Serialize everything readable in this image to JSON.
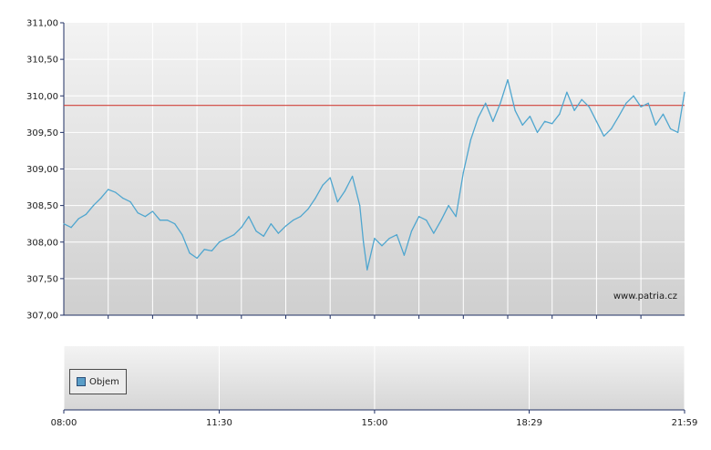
{
  "chart_data": {
    "type": "line",
    "watermark": "www.patria.cz",
    "reference_line": 309.87,
    "colors": {
      "line": "#4fa6cf",
      "reference": "#d0423a"
    },
    "y_ticks": [
      "311,00",
      "310,50",
      "310,00",
      "309,50",
      "309,00",
      "308,50",
      "308,00",
      "307,50",
      "307,00"
    ],
    "ylim": [
      307.0,
      311.0
    ],
    "x_ticks": [
      "08:00",
      "11:30",
      "15:00",
      "18:29",
      "21:59"
    ],
    "legend": {
      "label": "Objem"
    },
    "series": [
      {
        "values": [
          [
            "08:00",
            308.25
          ],
          [
            "08:10",
            308.2
          ],
          [
            "08:20",
            308.32
          ],
          [
            "08:30",
            308.38
          ],
          [
            "08:40",
            308.5
          ],
          [
            "08:50",
            308.6
          ],
          [
            "09:00",
            308.72
          ],
          [
            "09:10",
            308.68
          ],
          [
            "09:20",
            308.6
          ],
          [
            "09:30",
            308.55
          ],
          [
            "09:40",
            308.4
          ],
          [
            "09:50",
            308.35
          ],
          [
            "10:00",
            308.42
          ],
          [
            "10:10",
            308.3
          ],
          [
            "10:20",
            308.3
          ],
          [
            "10:30",
            308.25
          ],
          [
            "10:40",
            308.1
          ],
          [
            "10:50",
            307.85
          ],
          [
            "11:00",
            307.78
          ],
          [
            "11:10",
            307.9
          ],
          [
            "11:20",
            307.88
          ],
          [
            "11:30",
            308.0
          ],
          [
            "11:40",
            308.05
          ],
          [
            "11:50",
            308.1
          ],
          [
            "12:00",
            308.2
          ],
          [
            "12:10",
            308.35
          ],
          [
            "12:20",
            308.15
          ],
          [
            "12:30",
            308.08
          ],
          [
            "12:40",
            308.25
          ],
          [
            "12:50",
            308.12
          ],
          [
            "13:00",
            308.22
          ],
          [
            "13:10",
            308.3
          ],
          [
            "13:20",
            308.35
          ],
          [
            "13:30",
            308.45
          ],
          [
            "13:40",
            308.6
          ],
          [
            "13:50",
            308.78
          ],
          [
            "14:00",
            308.88
          ],
          [
            "14:10",
            308.55
          ],
          [
            "14:20",
            308.7
          ],
          [
            "14:30",
            308.9
          ],
          [
            "14:40",
            308.5
          ],
          [
            "14:45",
            308.0
          ],
          [
            "14:50",
            307.62
          ],
          [
            "15:00",
            308.05
          ],
          [
            "15:10",
            307.95
          ],
          [
            "15:20",
            308.05
          ],
          [
            "15:30",
            308.1
          ],
          [
            "15:40",
            307.82
          ],
          [
            "15:50",
            308.15
          ],
          [
            "16:00",
            308.35
          ],
          [
            "16:10",
            308.3
          ],
          [
            "16:20",
            308.12
          ],
          [
            "16:30",
            308.3
          ],
          [
            "16:40",
            308.5
          ],
          [
            "16:50",
            308.35
          ],
          [
            "17:00",
            308.95
          ],
          [
            "17:10",
            309.4
          ],
          [
            "17:20",
            309.7
          ],
          [
            "17:30",
            309.9
          ],
          [
            "17:40",
            309.65
          ],
          [
            "17:50",
            309.9
          ],
          [
            "18:00",
            310.22
          ],
          [
            "18:10",
            309.8
          ],
          [
            "18:20",
            309.6
          ],
          [
            "18:30",
            309.72
          ],
          [
            "18:40",
            309.5
          ],
          [
            "18:50",
            309.65
          ],
          [
            "19:00",
            309.62
          ],
          [
            "19:10",
            309.75
          ],
          [
            "19:20",
            310.05
          ],
          [
            "19:30",
            309.8
          ],
          [
            "19:40",
            309.95
          ],
          [
            "19:50",
            309.85
          ],
          [
            "20:00",
            309.65
          ],
          [
            "20:10",
            309.45
          ],
          [
            "20:20",
            309.55
          ],
          [
            "20:30",
            309.72
          ],
          [
            "20:40",
            309.9
          ],
          [
            "20:50",
            310.0
          ],
          [
            "21:00",
            309.85
          ],
          [
            "21:10",
            309.9
          ],
          [
            "21:20",
            309.6
          ],
          [
            "21:30",
            309.75
          ],
          [
            "21:40",
            309.55
          ],
          [
            "21:50",
            309.5
          ],
          [
            "21:59",
            310.05
          ]
        ]
      }
    ]
  }
}
